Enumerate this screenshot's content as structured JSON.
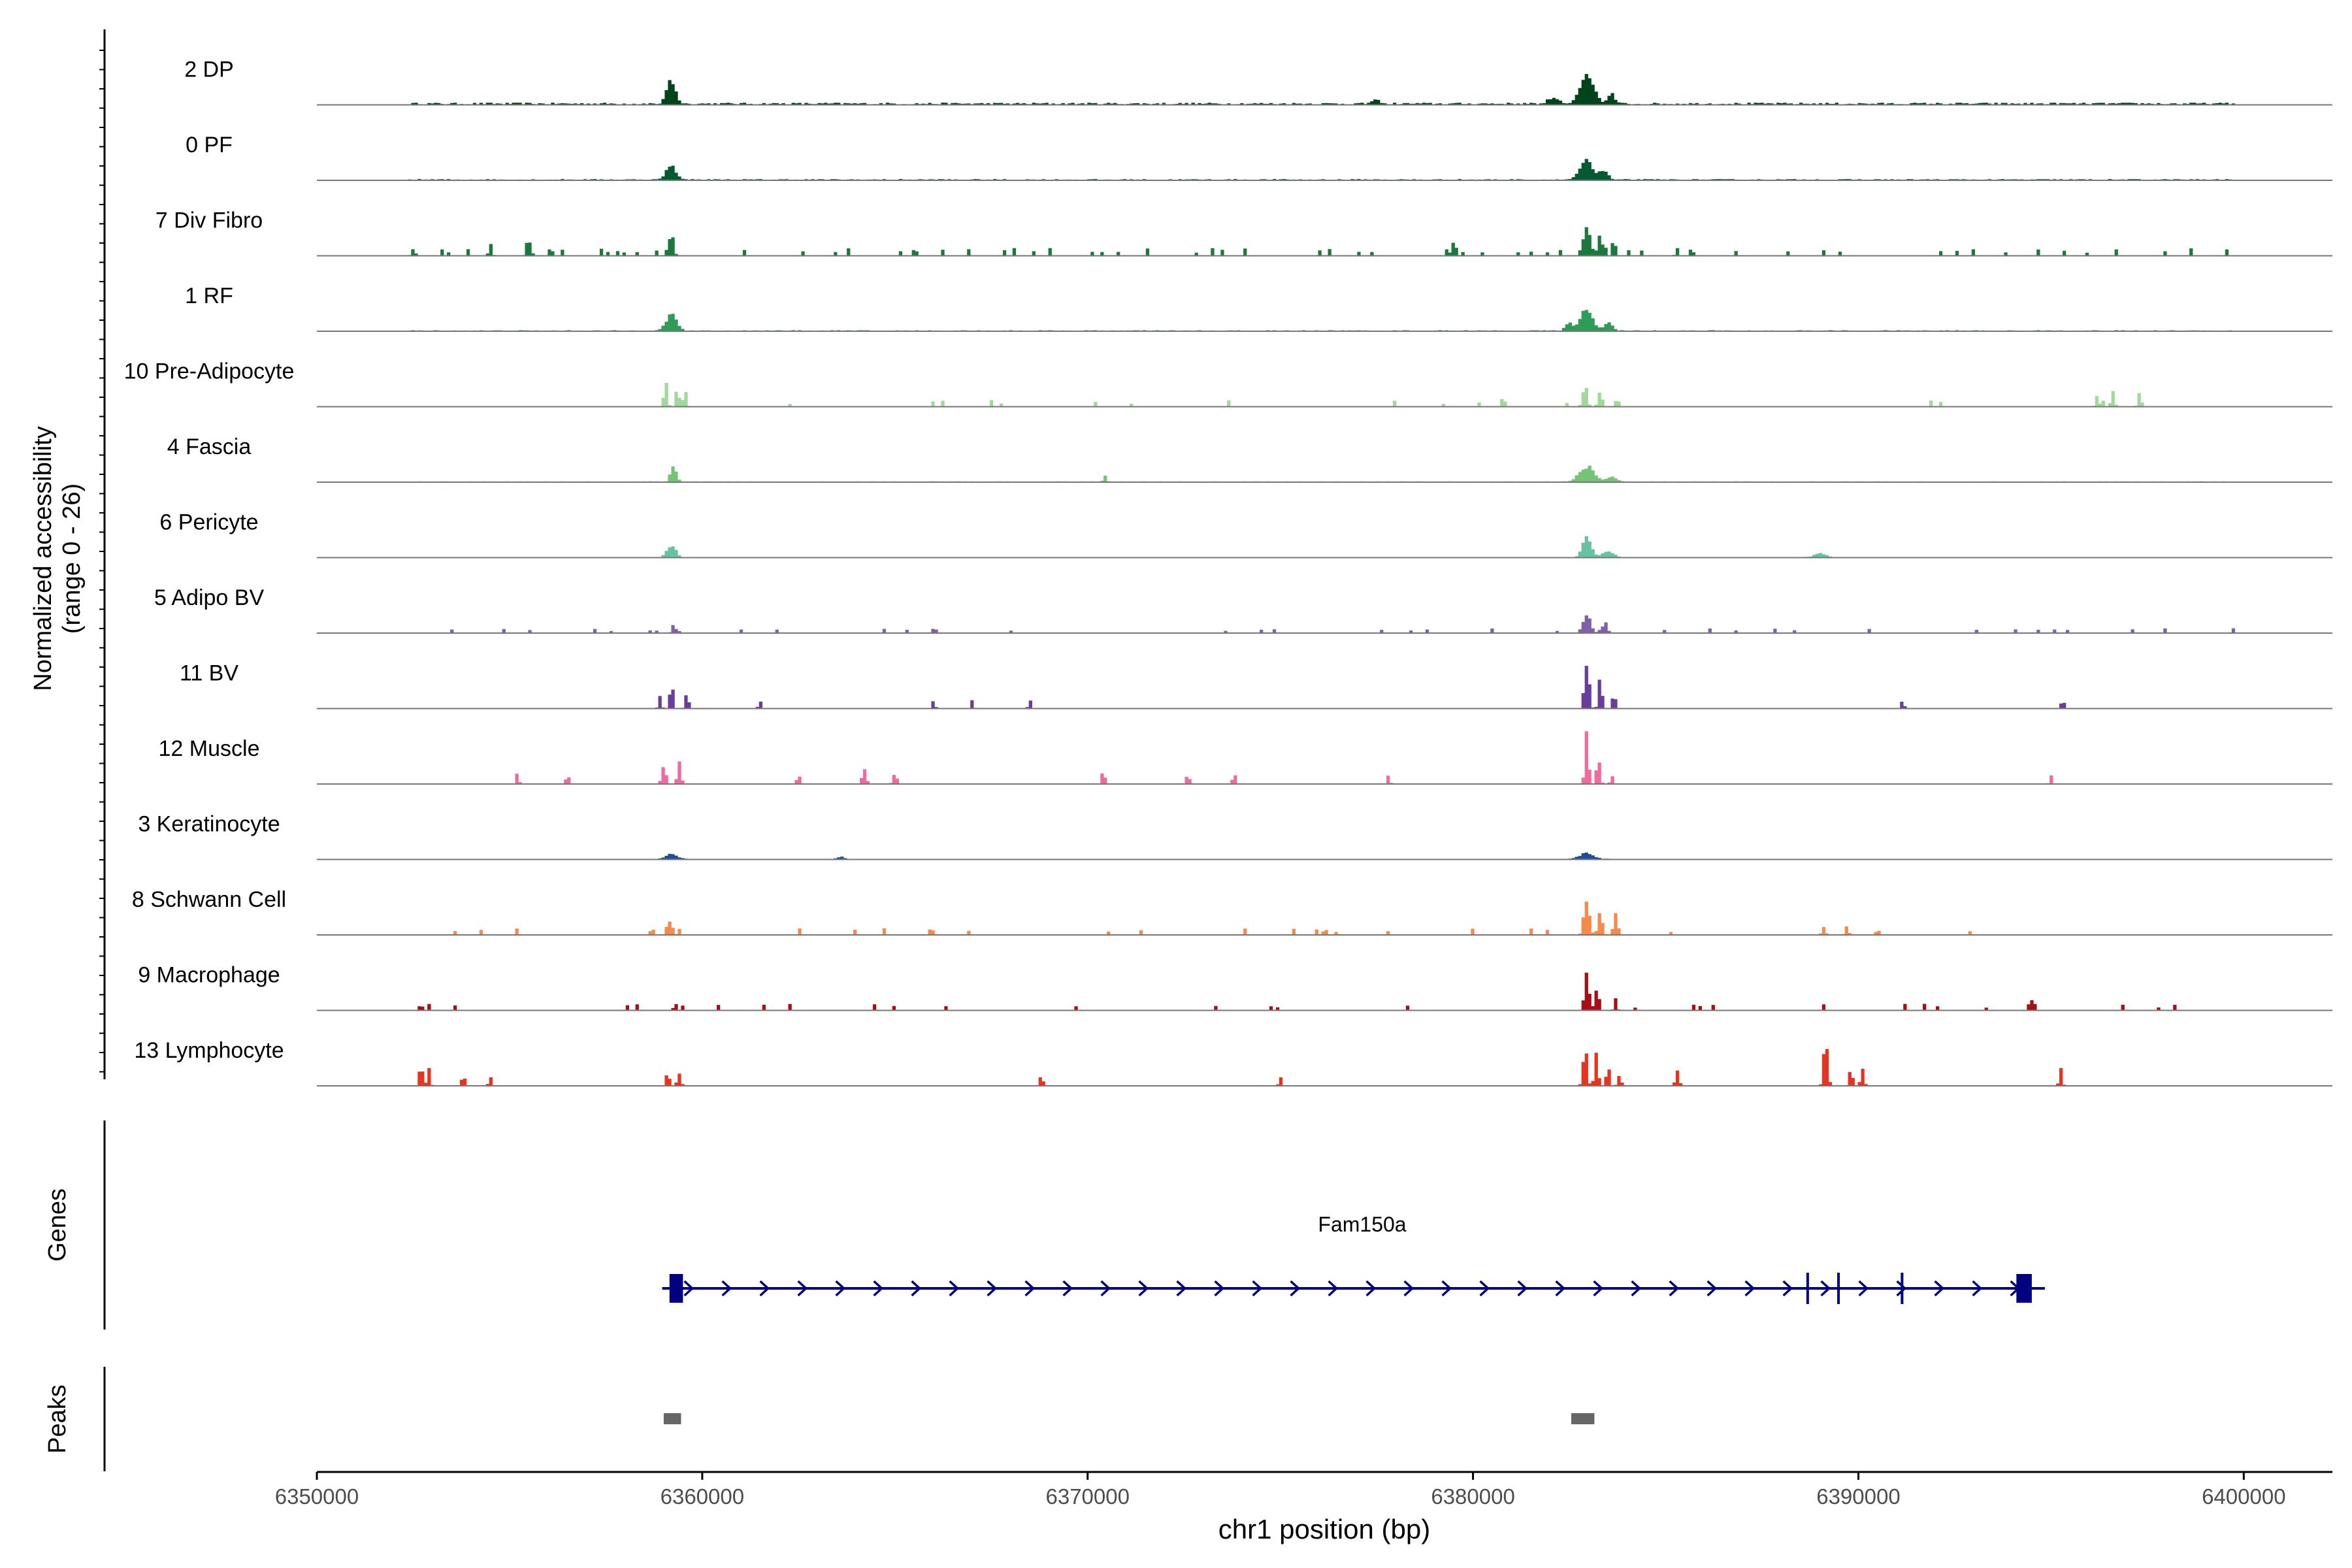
{
  "chart_data": {
    "type": "area",
    "y_axis_title_line1": "Normalized accessibility",
    "y_axis_title_line2": "(range 0 - 26)",
    "ylim": [
      0,
      26
    ],
    "xlabel": "chr1 position (bp)",
    "xlim": [
      6350000,
      6402300
    ],
    "x_ticks": [
      6350000,
      6360000,
      6370000,
      6380000,
      6390000,
      6400000
    ],
    "x_tick_labels": [
      "6350000",
      "6360000",
      "6370000",
      "6380000",
      "6390000",
      "6400000"
    ],
    "grid": false,
    "legend": "none",
    "tracks": [
      {
        "name": "2 DP",
        "color": "#00441b",
        "noise": 1.0,
        "peaks": [
          [
            6359190,
            140,
            12
          ],
          [
            6377500,
            120,
            2
          ],
          [
            6382100,
            200,
            3
          ],
          [
            6382950,
            230,
            16
          ],
          [
            6383600,
            100,
            5
          ]
        ]
      },
      {
        "name": "0 PF",
        "color": "#005a32",
        "noise": 0.6,
        "peaks": [
          [
            6359190,
            150,
            8
          ],
          [
            6382950,
            220,
            10
          ],
          [
            6383400,
            120,
            5
          ]
        ]
      },
      {
        "name": "7 Div Fibro",
        "color": "#1a7a3c",
        "noise": 0.0,
        "sparse_density": 2.2,
        "sparse_h": 3.5,
        "peaks": [
          [
            6352500,
            40,
            4
          ],
          [
            6354500,
            40,
            4
          ],
          [
            6355500,
            60,
            7
          ],
          [
            6359200,
            60,
            8
          ],
          [
            6379500,
            60,
            8
          ],
          [
            6382950,
            120,
            15
          ],
          [
            6383300,
            60,
            11
          ],
          [
            6383650,
            40,
            9
          ],
          [
            6385300,
            30,
            4
          ]
        ]
      },
      {
        "name": "1 RF",
        "color": "#2e9c57",
        "noise": 0.5,
        "peaks": [
          [
            6359200,
            180,
            8
          ],
          [
            6382500,
            120,
            4
          ],
          [
            6382950,
            200,
            11
          ],
          [
            6383500,
            150,
            4
          ]
        ]
      },
      {
        "name": "10 Pre-Adipocyte",
        "color": "#a1d99b",
        "noise": 0.0,
        "sparse_density": 0.7,
        "sparse_h": 3,
        "peaks": [
          [
            6359050,
            40,
            12
          ],
          [
            6359350,
            40,
            10
          ],
          [
            6359550,
            40,
            8
          ],
          [
            6382900,
            60,
            11
          ],
          [
            6383300,
            50,
            8
          ],
          [
            6396200,
            40,
            6
          ],
          [
            6396600,
            40,
            8
          ],
          [
            6397300,
            40,
            7
          ],
          [
            6380800,
            20,
            5
          ]
        ]
      },
      {
        "name": "4 Fascia",
        "color": "#74c476",
        "noise": 0.4,
        "peaks": [
          [
            6359250,
            80,
            9
          ],
          [
            6382950,
            250,
            8
          ],
          [
            6383600,
            150,
            3
          ],
          [
            6370450,
            40,
            3
          ]
        ]
      },
      {
        "name": "6 Pericyte",
        "color": "#66c2a5",
        "noise": 0.3,
        "peaks": [
          [
            6359200,
            150,
            6
          ],
          [
            6382950,
            140,
            11
          ],
          [
            6383500,
            200,
            3
          ],
          [
            6389000,
            200,
            2
          ]
        ]
      },
      {
        "name": "5 Adipo BV",
        "color": "#8060a8",
        "noise": 0.0,
        "sparse_density": 1.2,
        "sparse_h": 2.2,
        "peaks": [
          [
            6382950,
            120,
            10
          ],
          [
            6383400,
            100,
            4
          ],
          [
            6359300,
            100,
            2
          ]
        ]
      },
      {
        "name": "11 BV",
        "color": "#6a3d9a",
        "noise": 0.0,
        "sparse_density": 0.0,
        "sparse_h": 2,
        "peaks": [
          [
            6358900,
            30,
            6
          ],
          [
            6359200,
            40,
            12
          ],
          [
            6359600,
            40,
            8
          ],
          [
            6361500,
            30,
            4
          ],
          [
            6366000,
            30,
            4
          ],
          [
            6367000,
            30,
            4
          ],
          [
            6368500,
            30,
            4
          ],
          [
            6382950,
            60,
            26
          ],
          [
            6383300,
            40,
            16
          ],
          [
            6383650,
            40,
            8
          ],
          [
            6391150,
            30,
            4
          ],
          [
            6395300,
            30,
            5
          ]
        ]
      },
      {
        "name": "12 Muscle",
        "color": "#f06aa0",
        "noise": 0.0,
        "sparse_density": 0.0,
        "sparse_h": 2,
        "peaks": [
          [
            6355200,
            30,
            5
          ],
          [
            6356500,
            30,
            5
          ],
          [
            6359000,
            50,
            10
          ],
          [
            6359400,
            40,
            12
          ],
          [
            6362500,
            40,
            5
          ],
          [
            6364200,
            60,
            7
          ],
          [
            6365000,
            50,
            6
          ],
          [
            6370400,
            40,
            7
          ],
          [
            6372600,
            30,
            5
          ],
          [
            6373800,
            30,
            6
          ],
          [
            6377800,
            30,
            5
          ],
          [
            6382950,
            40,
            26
          ],
          [
            6383250,
            40,
            14
          ],
          [
            6383600,
            30,
            4
          ],
          [
            6395000,
            30,
            4
          ]
        ]
      },
      {
        "name": "3 Keratinocyte",
        "color": "#1f4e96",
        "noise": 0.3,
        "peaks": [
          [
            6359200,
            200,
            2.5
          ],
          [
            6382950,
            250,
            3
          ],
          [
            6363600,
            100,
            1.5
          ]
        ]
      },
      {
        "name": "8 Schwann Cell",
        "color": "#f58a4b",
        "noise": 0.0,
        "sparse_density": 0.6,
        "sparse_h": 3,
        "peaks": [
          [
            6359150,
            80,
            8
          ],
          [
            6358700,
            50,
            3
          ],
          [
            6382950,
            80,
            16
          ],
          [
            6383300,
            60,
            12
          ],
          [
            6383700,
            60,
            10
          ],
          [
            6389100,
            40,
            4
          ],
          [
            6389700,
            40,
            4
          ],
          [
            6390500,
            40,
            3
          ]
        ]
      },
      {
        "name": "9 Macrophage",
        "color": "#a50f15",
        "noise": 0.0,
        "sparse_density": 0.9,
        "sparse_h": 3,
        "peaks": [
          [
            6382950,
            60,
            20
          ],
          [
            6383200,
            40,
            12
          ],
          [
            6383700,
            30,
            6
          ],
          [
            6352700,
            30,
            4
          ],
          [
            6359300,
            30,
            4
          ],
          [
            6394500,
            30,
            5
          ]
        ]
      },
      {
        "name": "13 Lymphocyte",
        "color": "#e6341f",
        "noise": 0.0,
        "sparse_density": 0.0,
        "sparse_h": 2,
        "peaks": [
          [
            6352700,
            40,
            12
          ],
          [
            6352900,
            30,
            10
          ],
          [
            6353800,
            50,
            5
          ],
          [
            6354500,
            30,
            5
          ],
          [
            6359100,
            40,
            8
          ],
          [
            6359400,
            40,
            7
          ],
          [
            6368800,
            30,
            6
          ],
          [
            6375000,
            30,
            5
          ],
          [
            6382900,
            50,
            20
          ],
          [
            6383200,
            40,
            17
          ],
          [
            6383500,
            40,
            10
          ],
          [
            6383800,
            40,
            6
          ],
          [
            6385300,
            40,
            9
          ],
          [
            6389150,
            50,
            26
          ],
          [
            6389800,
            40,
            8
          ],
          [
            6390100,
            40,
            8
          ],
          [
            6395250,
            30,
            9
          ]
        ]
      }
    ],
    "genes_label": "Genes",
    "gene": {
      "name": "Fam150a",
      "start": 6359300,
      "end": 6394500,
      "strand": "+",
      "exons": [
        [
          6359150,
          6359500
        ],
        [
          6388650,
          6388700
        ],
        [
          6389450,
          6389500
        ],
        [
          6391100,
          6391150
        ],
        [
          6394100,
          6394500
        ]
      ]
    },
    "peaks_label": "Peaks",
    "peaks": [
      [
        6359000,
        6359450
      ],
      [
        6382550,
        6383150
      ]
    ],
    "colors": {
      "axis": "#000000",
      "baseline": "#777777",
      "gene": "#000080",
      "peak": "#666666"
    }
  }
}
